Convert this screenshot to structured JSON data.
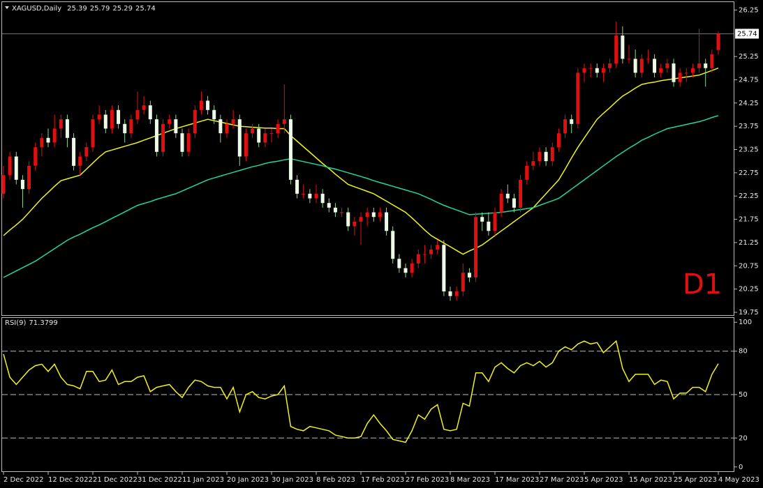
{
  "chart_data": {
    "type": "candlestick",
    "symbol": "XAGUSD,Daily",
    "label": "D1",
    "up_color": "#e01010",
    "down_color": "#eefae8",
    "down_wick": "#8fd88f",
    "categories": [
      "2 Dec 2022",
      null,
      null,
      null,
      null,
      null,
      null,
      "12 Dec 2022",
      null,
      null,
      null,
      null,
      null,
      null,
      "21 Dec 2022",
      null,
      null,
      null,
      null,
      null,
      null,
      "31 Dec 2022",
      null,
      null,
      null,
      null,
      null,
      null,
      "11 Jan 2023",
      null,
      null,
      null,
      null,
      null,
      null,
      "20 Jan 2023",
      null,
      null,
      null,
      null,
      null,
      null,
      "30 Jan 2023",
      null,
      null,
      null,
      null,
      null,
      null,
      "8 Feb 2023",
      null,
      null,
      null,
      null,
      null,
      null,
      "17 Feb 2023",
      null,
      null,
      null,
      null,
      null,
      null,
      "27 Feb 2023",
      null,
      null,
      null,
      null,
      null,
      null,
      "8 Mar 2023",
      null,
      null,
      null,
      null,
      null,
      null,
      "17 Mar 2023",
      null,
      null,
      null,
      null,
      null,
      null,
      "27 Mar 2023",
      null,
      null,
      null,
      null,
      null,
      null,
      "5 Apr 2023",
      null,
      null,
      null,
      null,
      null,
      null,
      "15 Apr 2023",
      null,
      null,
      null,
      null,
      null,
      null,
      "25 Apr 2023",
      null,
      null,
      null,
      null,
      null,
      null,
      "4 May 2023"
    ],
    "ohlc": [
      [
        22.3,
        22.9,
        22.2,
        22.7
      ],
      [
        22.7,
        23.2,
        22.6,
        23.1
      ],
      [
        23.1,
        23.2,
        22.5,
        22.6
      ],
      [
        22.6,
        22.7,
        22.0,
        22.4
      ],
      [
        22.4,
        23.0,
        22.3,
        22.9
      ],
      [
        22.9,
        23.4,
        22.8,
        23.3
      ],
      [
        23.3,
        23.6,
        23.1,
        23.5
      ],
      [
        23.5,
        23.7,
        23.3,
        23.4
      ],
      [
        23.4,
        24.0,
        23.3,
        23.7
      ],
      [
        23.7,
        24.0,
        23.5,
        23.9
      ],
      [
        23.9,
        24.0,
        23.3,
        23.5
      ],
      [
        23.5,
        23.6,
        22.8,
        22.9
      ],
      [
        22.9,
        23.2,
        22.7,
        23.1
      ],
      [
        23.1,
        23.4,
        23.0,
        23.3
      ],
      [
        23.3,
        24.0,
        23.2,
        23.9
      ],
      [
        23.9,
        24.2,
        23.8,
        24.0
      ],
      [
        24.0,
        24.1,
        23.6,
        23.7
      ],
      [
        23.7,
        24.2,
        23.6,
        24.1
      ],
      [
        24.1,
        24.2,
        23.7,
        23.8
      ],
      [
        23.8,
        23.9,
        23.4,
        23.6
      ],
      [
        23.6,
        24.0,
        23.5,
        23.9
      ],
      [
        23.9,
        24.5,
        23.8,
        24.1
      ],
      [
        24.1,
        24.4,
        24.0,
        24.2
      ],
      [
        24.2,
        24.3,
        23.8,
        23.9
      ],
      [
        23.9,
        24.0,
        23.1,
        23.2
      ],
      [
        23.2,
        23.9,
        23.1,
        23.8
      ],
      [
        23.8,
        24.0,
        23.7,
        23.9
      ],
      [
        23.9,
        24.0,
        23.5,
        23.6
      ],
      [
        23.6,
        23.7,
        23.1,
        23.2
      ],
      [
        23.2,
        23.7,
        23.1,
        23.6
      ],
      [
        23.6,
        24.2,
        23.5,
        24.1
      ],
      [
        24.1,
        24.5,
        24.0,
        24.3
      ],
      [
        24.3,
        24.4,
        24.0,
        24.1
      ],
      [
        24.1,
        24.2,
        23.8,
        23.9
      ],
      [
        23.9,
        24.0,
        23.4,
        23.6
      ],
      [
        23.6,
        23.9,
        23.5,
        23.8
      ],
      [
        23.8,
        24.1,
        23.7,
        23.9
      ],
      [
        23.9,
        24.0,
        22.9,
        23.1
      ],
      [
        23.1,
        23.7,
        23.0,
        23.6
      ],
      [
        23.6,
        23.8,
        23.5,
        23.7
      ],
      [
        23.7,
        23.8,
        23.3,
        23.4
      ],
      [
        23.4,
        23.7,
        23.3,
        23.6
      ],
      [
        23.6,
        23.7,
        23.4,
        23.6
      ],
      [
        23.6,
        23.9,
        23.5,
        23.8
      ],
      [
        23.8,
        24.65,
        23.6,
        23.9
      ],
      [
        23.9,
        24.0,
        22.5,
        22.6
      ],
      [
        22.6,
        22.7,
        22.2,
        22.3
      ],
      [
        22.3,
        22.5,
        22.2,
        22.3
      ],
      [
        22.3,
        22.4,
        22.1,
        22.2
      ],
      [
        22.2,
        22.5,
        22.1,
        22.3
      ],
      [
        22.3,
        22.4,
        22.0,
        22.1
      ],
      [
        22.1,
        22.2,
        21.9,
        22.0
      ],
      [
        22.0,
        22.1,
        21.8,
        21.9
      ],
      [
        21.9,
        22.0,
        21.8,
        21.9
      ],
      [
        21.9,
        22.0,
        21.5,
        21.6
      ],
      [
        21.6,
        21.8,
        21.4,
        21.7
      ],
      [
        21.7,
        21.9,
        21.2,
        21.8
      ],
      [
        21.8,
        22.0,
        21.6,
        21.9
      ],
      [
        21.9,
        22.0,
        21.7,
        21.8
      ],
      [
        21.8,
        22.0,
        21.7,
        21.9
      ],
      [
        21.9,
        22.0,
        21.4,
        21.5
      ],
      [
        21.5,
        21.6,
        20.8,
        20.9
      ],
      [
        20.9,
        21.0,
        20.6,
        20.7
      ],
      [
        20.7,
        20.8,
        20.5,
        20.6
      ],
      [
        20.6,
        20.9,
        20.5,
        20.8
      ],
      [
        20.8,
        21.1,
        20.7,
        21.0
      ],
      [
        21.0,
        21.2,
        20.8,
        21.0
      ],
      [
        21.0,
        21.2,
        20.9,
        21.1
      ],
      [
        21.1,
        21.3,
        21.0,
        21.2
      ],
      [
        21.2,
        21.3,
        20.1,
        20.2
      ],
      [
        20.2,
        20.3,
        20.0,
        20.1
      ],
      [
        20.1,
        20.3,
        20.0,
        20.2
      ],
      [
        20.2,
        20.8,
        20.1,
        20.6
      ],
      [
        20.6,
        20.7,
        20.4,
        20.5
      ],
      [
        20.5,
        21.9,
        20.4,
        21.8
      ],
      [
        21.8,
        21.9,
        21.5,
        21.7
      ],
      [
        21.7,
        21.9,
        21.4,
        21.5
      ],
      [
        21.5,
        22.0,
        21.4,
        21.9
      ],
      [
        21.9,
        22.4,
        21.8,
        22.3
      ],
      [
        22.3,
        22.5,
        22.1,
        22.2
      ],
      [
        22.2,
        22.3,
        21.9,
        22.0
      ],
      [
        22.0,
        22.7,
        21.9,
        22.6
      ],
      [
        22.6,
        23.0,
        22.5,
        22.9
      ],
      [
        22.9,
        23.2,
        22.8,
        23.0
      ],
      [
        23.0,
        23.3,
        22.9,
        23.2
      ],
      [
        23.2,
        23.3,
        22.9,
        23.0
      ],
      [
        23.0,
        23.4,
        22.9,
        23.3
      ],
      [
        23.3,
        23.7,
        23.2,
        23.6
      ],
      [
        23.6,
        24.0,
        23.5,
        23.9
      ],
      [
        23.9,
        24.0,
        23.6,
        23.8
      ],
      [
        23.8,
        25.0,
        23.7,
        24.9
      ],
      [
        24.9,
        25.1,
        24.7,
        25.0
      ],
      [
        25.0,
        25.1,
        24.8,
        25.0
      ],
      [
        25.0,
        25.1,
        24.8,
        24.9
      ],
      [
        24.9,
        25.1,
        24.7,
        25.0
      ],
      [
        25.0,
        25.2,
        24.9,
        25.1
      ],
      [
        25.1,
        26.0,
        25.0,
        25.7
      ],
      [
        25.7,
        25.9,
        25.1,
        25.2
      ],
      [
        25.2,
        25.5,
        25.1,
        25.2
      ],
      [
        25.2,
        25.4,
        24.8,
        24.9
      ],
      [
        24.9,
        25.3,
        24.8,
        25.2
      ],
      [
        25.2,
        25.4,
        25.1,
        25.2
      ],
      [
        25.2,
        25.3,
        24.8,
        24.9
      ],
      [
        24.9,
        25.1,
        24.8,
        25.0
      ],
      [
        25.0,
        25.2,
        24.9,
        25.1
      ],
      [
        25.1,
        25.2,
        24.6,
        24.7
      ],
      [
        24.7,
        25.0,
        24.6,
        24.9
      ],
      [
        24.9,
        25.0,
        24.7,
        24.9
      ],
      [
        24.9,
        25.1,
        24.8,
        25.0
      ],
      [
        25.0,
        25.85,
        24.9,
        25.1
      ],
      [
        25.1,
        25.2,
        24.6,
        25.0
      ],
      [
        25.0,
        25.4,
        24.9,
        25.3
      ],
      [
        25.39,
        25.79,
        25.29,
        25.74
      ]
    ],
    "lines": [
      {
        "color": "#f2f21a",
        "values": [
          21.4,
          21.52,
          21.63,
          21.75,
          21.9,
          22.05,
          22.2,
          22.33,
          22.46,
          22.58,
          22.62,
          22.66,
          22.7,
          22.83,
          22.96,
          23.09,
          23.2,
          23.24,
          23.28,
          23.32,
          23.36,
          23.4,
          23.45,
          23.5,
          23.55,
          23.6,
          23.65,
          23.7,
          23.74,
          23.78,
          23.82,
          23.86,
          23.9,
          23.87,
          23.84,
          23.81,
          23.78,
          23.75,
          23.74,
          23.73,
          23.72,
          23.71,
          23.71,
          23.7,
          23.7,
          23.55,
          23.43,
          23.31,
          23.19,
          23.07,
          22.95,
          22.84,
          22.72,
          22.61,
          22.5,
          22.45,
          22.4,
          22.35,
          22.3,
          22.22,
          22.14,
          22.06,
          21.98,
          21.9,
          21.78,
          21.65,
          21.52,
          21.4,
          21.32,
          21.24,
          21.16,
          21.08,
          21.0,
          21.07,
          21.13,
          21.2,
          21.3,
          21.4,
          21.5,
          21.6,
          21.7,
          21.8,
          21.9,
          22.0,
          22.15,
          22.3,
          22.45,
          22.6,
          22.83,
          23.07,
          23.3,
          23.5,
          23.7,
          23.9,
          24.03,
          24.15,
          24.28,
          24.4,
          24.48,
          24.57,
          24.65,
          24.68,
          24.7,
          24.73,
          24.75,
          24.77,
          24.79,
          24.81,
          24.83,
          24.85,
          24.9,
          24.95,
          25.0
        ]
      },
      {
        "color": "#1fd99a",
        "values": [
          20.5,
          20.57,
          20.64,
          20.71,
          20.78,
          20.85,
          20.94,
          21.03,
          21.12,
          21.21,
          21.3,
          21.37,
          21.43,
          21.5,
          21.57,
          21.63,
          21.7,
          21.77,
          21.84,
          21.91,
          21.98,
          22.05,
          22.09,
          22.13,
          22.18,
          22.22,
          22.26,
          22.3,
          22.36,
          22.42,
          22.48,
          22.54,
          22.6,
          22.64,
          22.68,
          22.72,
          22.76,
          22.8,
          22.84,
          22.88,
          22.91,
          22.95,
          22.98,
          23.0,
          23.03,
          23.05,
          23.02,
          22.99,
          22.96,
          22.93,
          22.9,
          22.86,
          22.83,
          22.79,
          22.75,
          22.71,
          22.67,
          22.63,
          22.58,
          22.54,
          22.5,
          22.46,
          22.42,
          22.38,
          22.34,
          22.3,
          22.24,
          22.18,
          22.11,
          22.05,
          22.0,
          21.95,
          21.9,
          21.85,
          21.86,
          21.87,
          21.88,
          21.89,
          21.9,
          21.92,
          21.94,
          21.96,
          21.98,
          22.0,
          22.05,
          22.1,
          22.15,
          22.2,
          22.3,
          22.4,
          22.5,
          22.6,
          22.7,
          22.8,
          22.9,
          23.0,
          23.1,
          23.19,
          23.28,
          23.36,
          23.45,
          23.51,
          23.58,
          23.64,
          23.7,
          23.73,
          23.76,
          23.79,
          23.82,
          23.85,
          23.89,
          23.94,
          23.98
        ]
      }
    ],
    "ylim": [
      19.69,
      26.42
    ],
    "yticks": [
      26.25,
      25.25,
      24.75,
      24.25,
      23.75,
      23.25,
      22.75,
      22.25,
      21.75,
      21.25,
      20.75,
      20.25,
      19.75
    ],
    "rsi": {
      "title": "RSI(9)",
      "color": "#f2f21a",
      "values": [
        78,
        62,
        57,
        62,
        67,
        70,
        71,
        66,
        71,
        62,
        57,
        56,
        54,
        66,
        66,
        59,
        60,
        67,
        57,
        59,
        59,
        62,
        63,
        52,
        55,
        56,
        57,
        52,
        48,
        55,
        60,
        59,
        56,
        55,
        55,
        47,
        55,
        38,
        50,
        52,
        48,
        47,
        49,
        50,
        56,
        28,
        26,
        25,
        28,
        27,
        26,
        25,
        22,
        21,
        20,
        20,
        21,
        30,
        36,
        30,
        25,
        19,
        18,
        17,
        25,
        36,
        33,
        40,
        43,
        26,
        25,
        26,
        44,
        42,
        65,
        65,
        59,
        69,
        72,
        68,
        65,
        70,
        72,
        70,
        73,
        69,
        72,
        80,
        83,
        81,
        85,
        87,
        85,
        86,
        79,
        83,
        87,
        68,
        59,
        64,
        64,
        64,
        57,
        60,
        59,
        47,
        51,
        51,
        55,
        55,
        52,
        64,
        71.3799
      ],
      "ylim": [
        -3,
        103
      ],
      "yticks": [
        100,
        80,
        50,
        20,
        0
      ],
      "levels": [
        80,
        50,
        20
      ]
    }
  }
}
